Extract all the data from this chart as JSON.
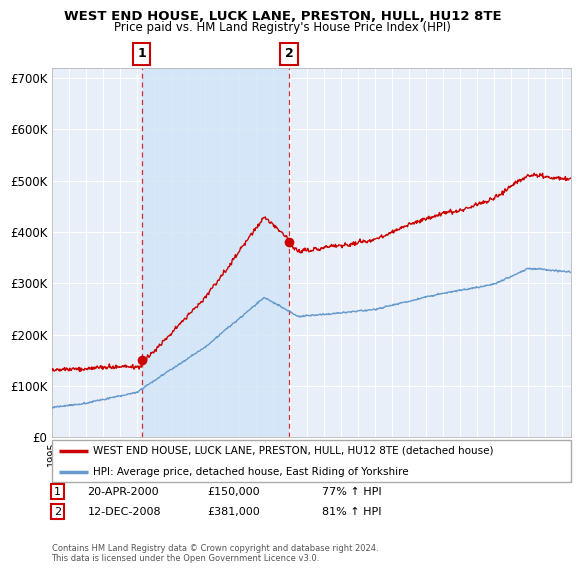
{
  "title": "WEST END HOUSE, LUCK LANE, PRESTON, HULL, HU12 8TE",
  "subtitle": "Price paid vs. HM Land Registry's House Price Index (HPI)",
  "house_label": "WEST END HOUSE, LUCK LANE, PRESTON, HULL, HU12 8TE (detached house)",
  "hpi_label": "HPI: Average price, detached house, East Riding of Yorkshire",
  "house_color": "#cc0000",
  "hpi_color": "#6699cc",
  "shade_color": "#d0e4f7",
  "sale1_date": 2000.3,
  "sale1_price": 150000,
  "sale2_date": 2008.95,
  "sale2_price": 381000,
  "xmin": 1995,
  "xmax": 2025.5,
  "ymin": 0,
  "ymax": 720000,
  "yticks": [
    0,
    100000,
    200000,
    300000,
    400000,
    500000,
    600000,
    700000
  ],
  "ytick_labels": [
    "£0",
    "£100K",
    "£200K",
    "£300K",
    "£400K",
    "£500K",
    "£600K",
    "£700K"
  ],
  "footnote": "Contains HM Land Registry data © Crown copyright and database right 2024.\nThis data is licensed under the Open Government Licence v3.0.",
  "background_color": "#ffffff",
  "plot_bg_color": "#e8eff8",
  "grid_color": "#ffffff"
}
